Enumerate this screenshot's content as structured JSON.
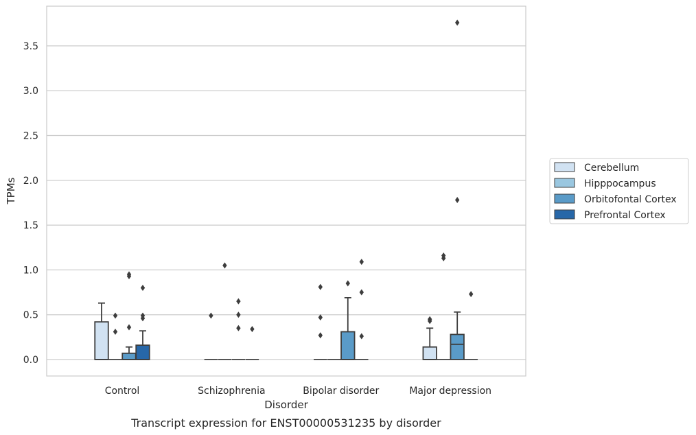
{
  "chart_data": {
    "type": "box",
    "caption": "Transcript expression for ENST00000531235 by disorder",
    "xlabel": "Disorder",
    "ylabel": "TPMs",
    "ylim": [
      -0.18,
      3.9
    ],
    "yticks": [
      0.0,
      0.5,
      1.0,
      1.5,
      2.0,
      2.5,
      3.0,
      3.5
    ],
    "ytick_labels": [
      "0.0",
      "0.5",
      "1.0",
      "1.5",
      "2.0",
      "2.5",
      "3.0",
      "3.5"
    ],
    "grid": "horizontal",
    "legend_placement": "right",
    "categories": [
      "Control",
      "Schizophrenia",
      "Bipolar disorder",
      "Major depression"
    ],
    "series": [
      {
        "name": "Cerebellum",
        "color": "#d1e2f2",
        "boxes": [
          {
            "q1": 0,
            "median": 0,
            "q3": 0.42,
            "whisker_low": 0,
            "whisker_high": 0.63,
            "outliers": []
          },
          {
            "q1": 0,
            "median": 0,
            "q3": 0,
            "whisker_low": 0,
            "whisker_high": 0,
            "outliers": [
              0.49
            ]
          },
          {
            "q1": 0,
            "median": 0,
            "q3": 0,
            "whisker_low": 0,
            "whisker_high": 0,
            "outliers": [
              0.27,
              0.47,
              0.81
            ]
          },
          {
            "q1": 0,
            "median": 0,
            "q3": 0.14,
            "whisker_low": 0,
            "whisker_high": 0.35,
            "outliers": [
              0.43,
              0.45
            ]
          }
        ]
      },
      {
        "name": "Hipppocampus",
        "color": "#9ac7e0",
        "boxes": [
          {
            "q1": 0,
            "median": 0,
            "q3": 0,
            "whisker_low": 0,
            "whisker_high": 0,
            "outliers": [
              0.31,
              0.49
            ]
          },
          {
            "q1": 0,
            "median": 0,
            "q3": 0,
            "whisker_low": 0,
            "whisker_high": 0,
            "outliers": [
              1.05
            ]
          },
          {
            "q1": 0,
            "median": 0,
            "q3": 0,
            "whisker_low": 0,
            "whisker_high": 0,
            "outliers": []
          },
          {
            "q1": 0,
            "median": 0,
            "q3": 0,
            "whisker_low": 0,
            "whisker_high": 0,
            "outliers": [
              1.13,
              1.16
            ]
          }
        ]
      },
      {
        "name": "Orbitofontal Cortex",
        "color": "#5a9bc8",
        "boxes": [
          {
            "q1": 0,
            "median": 0,
            "q3": 0.07,
            "whisker_low": 0,
            "whisker_high": 0.14,
            "outliers": [
              0.36,
              0.93,
              0.95
            ]
          },
          {
            "q1": 0,
            "median": 0,
            "q3": 0,
            "whisker_low": 0,
            "whisker_high": 0,
            "outliers": [
              0.35,
              0.5,
              0.65
            ]
          },
          {
            "q1": 0,
            "median": 0,
            "q3": 0.31,
            "whisker_low": 0,
            "whisker_high": 0.69,
            "outliers": [
              0.85
            ]
          },
          {
            "q1": 0,
            "median": 0.17,
            "q3": 0.28,
            "whisker_low": 0,
            "whisker_high": 0.53,
            "outliers": [
              1.78,
              3.76
            ]
          }
        ]
      },
      {
        "name": "Prefrontal Cortex",
        "color": "#2767a8",
        "boxes": [
          {
            "q1": 0,
            "median": 0,
            "q3": 0.16,
            "whisker_low": 0,
            "whisker_high": 0.32,
            "outliers": [
              0.46,
              0.49,
              0.8
            ]
          },
          {
            "q1": 0,
            "median": 0,
            "q3": 0,
            "whisker_low": 0,
            "whisker_high": 0,
            "outliers": [
              0.34
            ]
          },
          {
            "q1": 0,
            "median": 0,
            "q3": 0,
            "whisker_low": 0,
            "whisker_high": 0,
            "outliers": [
              0.26,
              0.75,
              1.09
            ]
          },
          {
            "q1": 0,
            "median": 0,
            "q3": 0,
            "whisker_low": 0,
            "whisker_high": 0,
            "outliers": [
              0.73
            ]
          }
        ]
      }
    ]
  }
}
